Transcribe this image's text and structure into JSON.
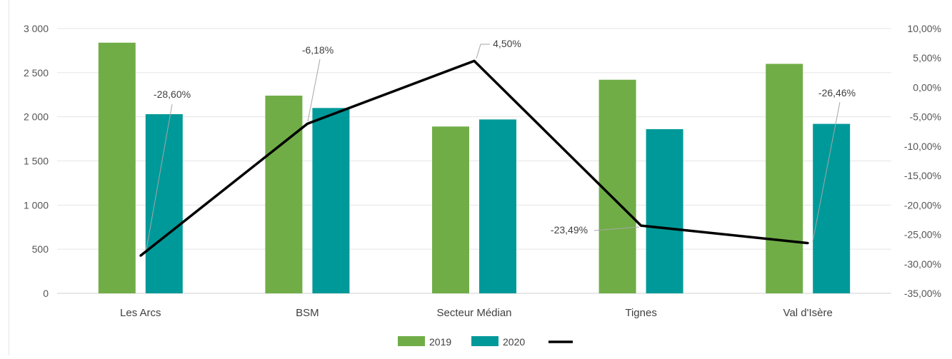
{
  "chart_data": {
    "type": "bar",
    "categories": [
      "Les Arcs",
      "BSM",
      "Secteur Médian",
      "Tignes",
      "Val d'Isère"
    ],
    "series": [
      {
        "name": "2019",
        "kind": "bar",
        "axis": "left",
        "color": "#70ad47",
        "values": [
          2840,
          2240,
          1890,
          2420,
          2600
        ]
      },
      {
        "name": "2020",
        "kind": "bar",
        "axis": "left",
        "color": "#009999",
        "values": [
          2030,
          2100,
          1970,
          1860,
          1920
        ]
      },
      {
        "name": "",
        "kind": "line",
        "axis": "right",
        "color": "#000000",
        "values": [
          -28.6,
          -6.18,
          4.5,
          -23.49,
          -26.46
        ]
      }
    ],
    "line_labels": [
      "-28,60%",
      "-6,18%",
      "4,50%",
      "-23,49%",
      "-26,46%"
    ],
    "left_axis": {
      "ylim": [
        0,
        3000
      ],
      "ticks": [
        0,
        500,
        1000,
        1500,
        2000,
        2500,
        3000
      ],
      "tick_labels": [
        "0",
        "500",
        "1 000",
        "1 500",
        "2 000",
        "2 500",
        "3 000"
      ]
    },
    "right_axis": {
      "ylim": [
        -35,
        10
      ],
      "ticks": [
        -35,
        -30,
        -25,
        -20,
        -15,
        -10,
        -5,
        0,
        5,
        10
      ],
      "tick_labels": [
        "-35,00%",
        "-30,00%",
        "-25,00%",
        "-20,00%",
        "-15,00%",
        "-10,00%",
        "-5,00%",
        "0,00%",
        "5,00%",
        "10,00%"
      ]
    },
    "grid": true,
    "legend": {
      "position": "bottom",
      "entries": [
        "2019",
        "2020",
        ""
      ]
    },
    "title": "",
    "xlabel": "",
    "ylabel": ""
  }
}
